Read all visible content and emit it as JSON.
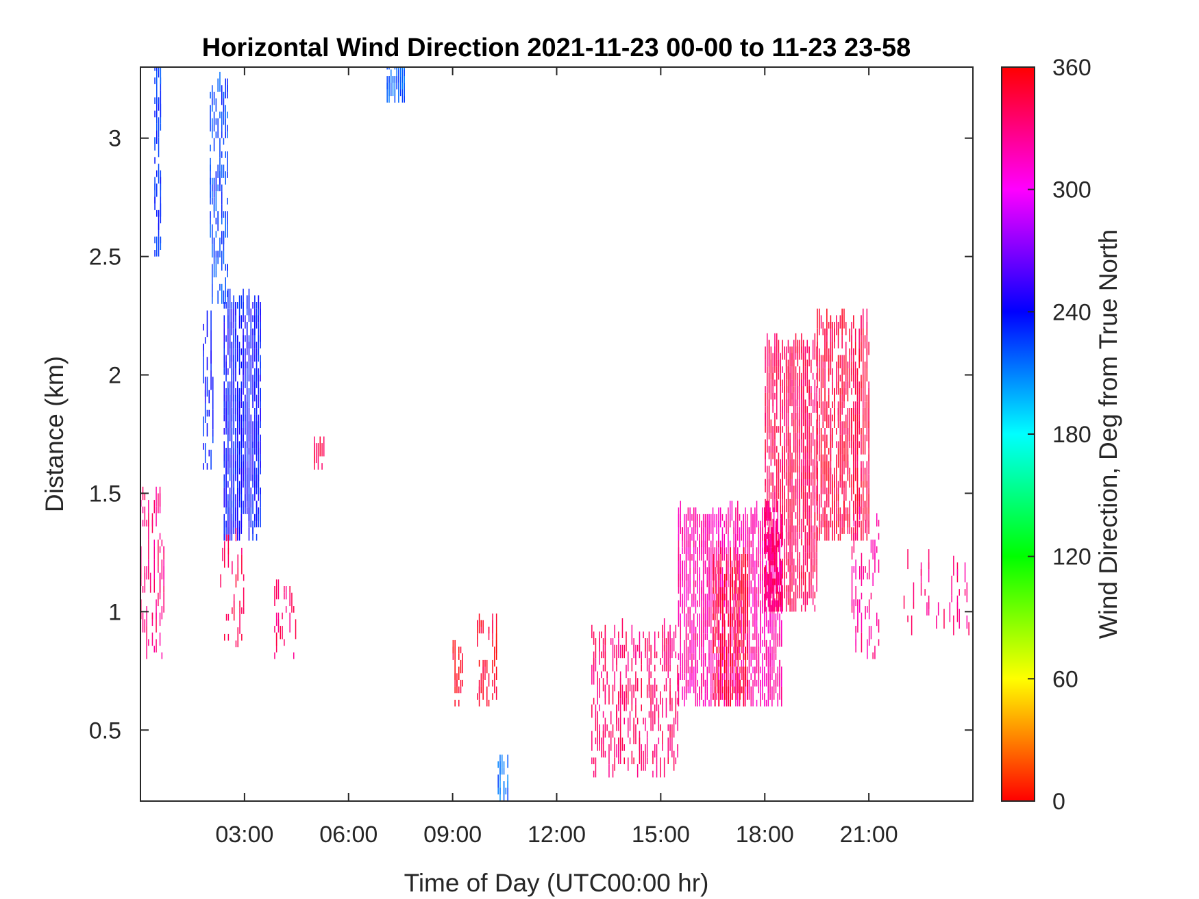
{
  "chart_data": {
    "type": "heatmap",
    "title": "Horizontal Wind Direction 2021-11-23 00-00 to 11-23 23-58",
    "xlabel": "Time of Day (UTC00:00 hr)",
    "ylabel": "Distance (km)",
    "x_unit": "hour",
    "xlim": [
      0,
      24
    ],
    "ylim": [
      0.2,
      3.3
    ],
    "xticks": [
      3,
      6,
      9,
      12,
      15,
      18,
      21
    ],
    "xtick_labels": [
      "03:00",
      "06:00",
      "09:00",
      "12:00",
      "15:00",
      "18:00",
      "21:00"
    ],
    "yticks": [
      0.5,
      1,
      1.5,
      2,
      2.5,
      3
    ],
    "ytick_labels": [
      "0.5",
      "1",
      "1.5",
      "2",
      "2.5",
      "3"
    ],
    "grid": false,
    "colorbar": {
      "label": "Wind Direction, Deg from True North",
      "range": [
        0,
        360
      ],
      "ticks": [
        0,
        60,
        120,
        180,
        240,
        300,
        360
      ],
      "tick_labels": [
        "0",
        "60",
        "120",
        "180",
        "240",
        "300",
        "360"
      ],
      "colormap": [
        "#ff0000",
        "#ff8000",
        "#ffff00",
        "#80ff00",
        "#00ff00",
        "#00ff80",
        "#00ffff",
        "#0080ff",
        "#0000ff",
        "#8000ff",
        "#ff00ff",
        "#ff0080",
        "#ff0000"
      ]
    },
    "regions": [
      {
        "x_start": 0.0,
        "x_end": 0.7,
        "y_start": 0.8,
        "y_end": 1.5,
        "direction_deg": 330,
        "density": 0.25
      },
      {
        "x_start": 0.4,
        "x_end": 0.6,
        "y_start": 2.5,
        "y_end": 3.3,
        "direction_deg": 228,
        "density": 0.5
      },
      {
        "x_start": 2.0,
        "x_end": 2.5,
        "y_start": 2.3,
        "y_end": 3.2,
        "direction_deg": 225,
        "density": 0.35
      },
      {
        "x_start": 1.8,
        "x_end": 2.1,
        "y_start": 1.6,
        "y_end": 2.2,
        "direction_deg": 235,
        "density": 0.3
      },
      {
        "x_start": 2.4,
        "x_end": 3.5,
        "y_start": 1.3,
        "y_end": 2.3,
        "direction_deg": 238,
        "density": 0.65
      },
      {
        "x_start": 2.3,
        "x_end": 3.0,
        "y_start": 0.85,
        "y_end": 1.3,
        "direction_deg": 340,
        "density": 0.15
      },
      {
        "x_start": 3.8,
        "x_end": 4.5,
        "y_start": 0.8,
        "y_end": 1.1,
        "direction_deg": 335,
        "density": 0.2
      },
      {
        "x_start": 5.0,
        "x_end": 5.3,
        "y_start": 1.6,
        "y_end": 1.7,
        "direction_deg": 340,
        "density": 0.3
      },
      {
        "x_start": 7.1,
        "x_end": 7.6,
        "y_start": 3.15,
        "y_end": 3.3,
        "direction_deg": 218,
        "density": 0.6
      },
      {
        "x_start": 9.0,
        "x_end": 9.3,
        "y_start": 0.6,
        "y_end": 0.85,
        "direction_deg": 352,
        "density": 0.35
      },
      {
        "x_start": 9.7,
        "x_end": 10.3,
        "y_start": 0.6,
        "y_end": 0.95,
        "direction_deg": 352,
        "density": 0.3
      },
      {
        "x_start": 10.3,
        "x_end": 10.6,
        "y_start": 0.2,
        "y_end": 0.35,
        "direction_deg": 215,
        "density": 0.35
      },
      {
        "x_start": 13.0,
        "x_end": 15.5,
        "y_start": 0.3,
        "y_end": 0.9,
        "direction_deg": 335,
        "density": 0.25
      },
      {
        "x_start": 15.5,
        "x_end": 18.5,
        "y_start": 0.6,
        "y_end": 1.4,
        "direction_deg": 320,
        "density": 0.55
      },
      {
        "x_start": 16.5,
        "x_end": 17.5,
        "y_start": 0.6,
        "y_end": 1.2,
        "direction_deg": 350,
        "density": 0.5
      },
      {
        "x_start": 18.0,
        "x_end": 19.5,
        "y_start": 1.0,
        "y_end": 2.1,
        "direction_deg": 340,
        "density": 0.55
      },
      {
        "x_start": 19.5,
        "x_end": 21.0,
        "y_start": 1.3,
        "y_end": 2.2,
        "direction_deg": 345,
        "density": 0.55
      },
      {
        "x_start": 20.5,
        "x_end": 21.3,
        "y_start": 0.8,
        "y_end": 1.4,
        "direction_deg": 325,
        "density": 0.2
      },
      {
        "x_start": 22.0,
        "x_end": 24.0,
        "y_start": 0.9,
        "y_end": 1.2,
        "direction_deg": 330,
        "density": 0.08
      }
    ]
  }
}
